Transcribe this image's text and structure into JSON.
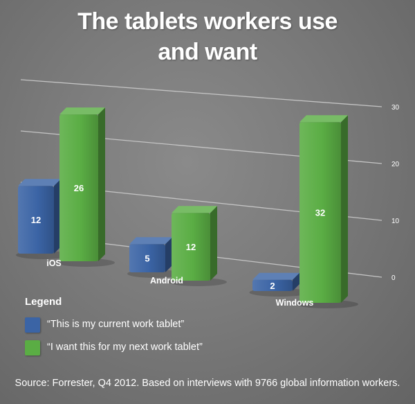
{
  "title_line1": "The tablets workers use",
  "title_line2": "and want",
  "legend": {
    "heading": "Legend",
    "items": [
      {
        "label": "“This is my current work tablet”",
        "color": "#3b64a5"
      },
      {
        "label": "“I want this for my next work tablet”",
        "color": "#5aad44"
      }
    ]
  },
  "source": "Source: Forrester, Q4 2012. Based on interviews with 9766 global information workers.",
  "chart_data": {
    "type": "bar",
    "categories": [
      "iOS",
      "Android",
      "Windows"
    ],
    "series": [
      {
        "name": "“This is my current work tablet”",
        "values": [
          12,
          5,
          2
        ],
        "color": "#3b64a5"
      },
      {
        "name": "“I want this for my next work tablet”",
        "values": [
          26,
          12,
          32
        ],
        "color": "#5aad44"
      }
    ],
    "yticks": [
      0,
      10,
      20,
      30
    ],
    "ylim": [
      0,
      30
    ],
    "grid": true,
    "three_d": true
  }
}
